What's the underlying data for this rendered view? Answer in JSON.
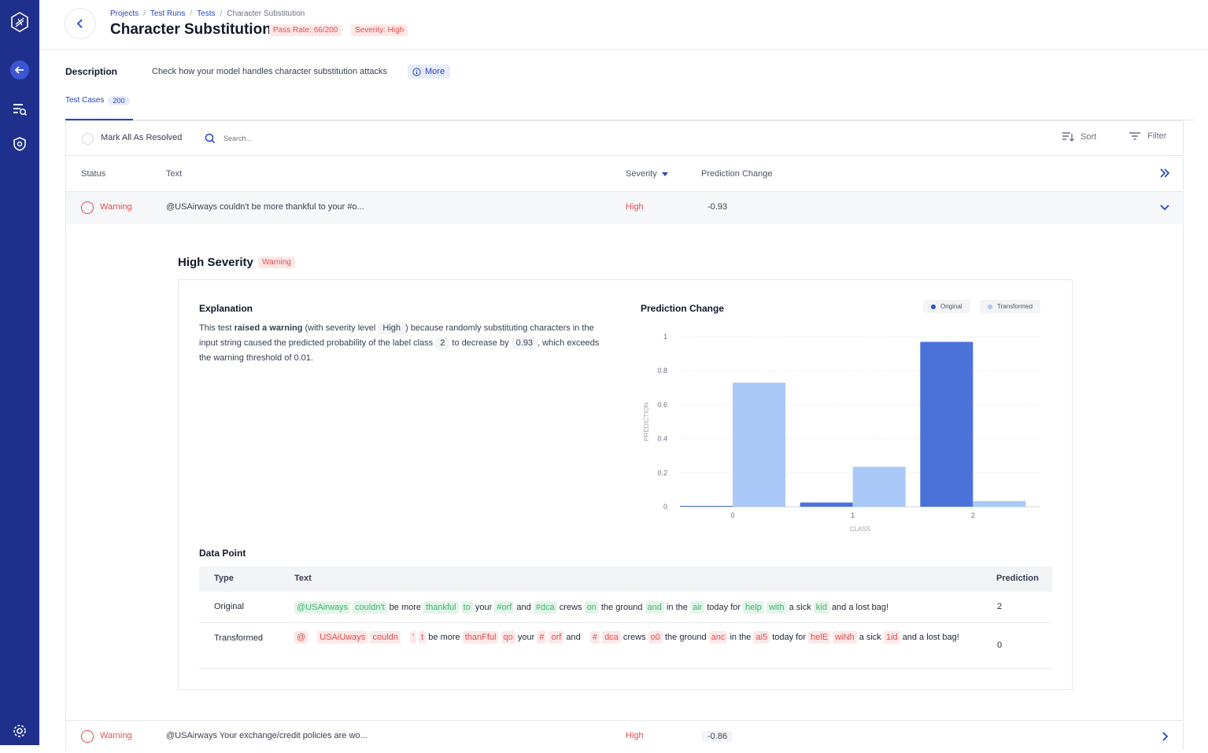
{
  "breadcrumb": [
    "Projects",
    "Test Runs",
    "Tests",
    "Character Substitution"
  ],
  "page": {
    "title": "Character Substitution",
    "pass_rate": "Pass Rate: 66/200",
    "severity": "Severity: High"
  },
  "description": {
    "label": "Description",
    "text": "Check how your model handles character substitution attacks",
    "more": "More"
  },
  "tabs": {
    "test_cases_label": "Test Cases",
    "test_cases_count": "200"
  },
  "toolbar": {
    "mark_all": "Mark All As Resolved",
    "search_placeholder": "Search...",
    "sort": "Sort",
    "filter": "Filter"
  },
  "table": {
    "headers": {
      "status": "Status",
      "text": "Text",
      "severity": "Severity",
      "prediction_change": "Prediction Change"
    },
    "rows": [
      {
        "status": "Warning",
        "text": "@USAirways couldn't be more thankful to your #o...",
        "severity": "High",
        "prediction_change": "-0.93"
      },
      {
        "status": "Warning",
        "text": "@USAirways Your exchange/credit policies are wo...",
        "severity": "High",
        "prediction_change": "-0.86"
      }
    ]
  },
  "detail": {
    "title": "High Severity",
    "badge": "Warning",
    "explanation_title": "Explanation",
    "explanation": {
      "p1": "This test ",
      "p2": "raised a warning",
      "p3": " (with severity level ",
      "level": "High",
      "p4": ") because randomly substituting characters in the input string caused the predicted probability of the label class ",
      "cls": "2",
      "p5": " to decrease by ",
      "delta": "0.93",
      "p6": ", which exceeds the warning threshold of 0.01."
    },
    "chart_title": "Prediction Change",
    "data_point_title": "Data Point",
    "dp_headers": {
      "type": "Type",
      "text": "Text",
      "prediction": "Prediction"
    },
    "original": {
      "type": "Original",
      "prediction": "2",
      "tokens": [
        {
          "t": "@USAirways",
          "h": "g"
        },
        {
          "t": "couldn't",
          "h": "g"
        },
        {
          "t": "be more",
          "h": ""
        },
        {
          "t": "thankful",
          "h": "g"
        },
        {
          "t": "to",
          "h": "g"
        },
        {
          "t": "your",
          "h": ""
        },
        {
          "t": "#orf",
          "h": "g"
        },
        {
          "t": "and",
          "h": ""
        },
        {
          "t": "#dca",
          "h": "g"
        },
        {
          "t": "crews",
          "h": ""
        },
        {
          "t": "on",
          "h": "g"
        },
        {
          "t": "the ground",
          "h": ""
        },
        {
          "t": "and",
          "h": "g"
        },
        {
          "t": "in the",
          "h": ""
        },
        {
          "t": "air",
          "h": "g"
        },
        {
          "t": "today for",
          "h": ""
        },
        {
          "t": "help",
          "h": "g"
        },
        {
          "t": "with",
          "h": "g"
        },
        {
          "t": "a sick",
          "h": ""
        },
        {
          "t": "kid",
          "h": "g"
        },
        {
          "t": "and a lost bag!",
          "h": ""
        }
      ]
    },
    "transformed": {
      "type": "Transformed",
      "prediction": "0",
      "tokens": [
        {
          "t": "@",
          "h": "r"
        },
        {
          "t": " ",
          "h": "r"
        },
        {
          "t": "USAiUways",
          "h": "r"
        },
        {
          "t": "couldn",
          "h": "r"
        },
        {
          "t": " ",
          "h": "r"
        },
        {
          "t": "'",
          "h": "r"
        },
        {
          "t": "t",
          "h": "r"
        },
        {
          "t": "be more",
          "h": ""
        },
        {
          "t": "thanFful",
          "h": "r"
        },
        {
          "t": "qo",
          "h": "r"
        },
        {
          "t": "your",
          "h": ""
        },
        {
          "t": "#",
          "h": "r"
        },
        {
          "t": "orf",
          "h": "r"
        },
        {
          "t": "and",
          "h": ""
        },
        {
          "t": " ",
          "h": "r"
        },
        {
          "t": "#",
          "h": "r"
        },
        {
          "t": "dca",
          "h": "r"
        },
        {
          "t": "crews",
          "h": ""
        },
        {
          "t": "o0",
          "h": "r"
        },
        {
          "t": "the ground",
          "h": ""
        },
        {
          "t": "anc",
          "h": "r"
        },
        {
          "t": "in the",
          "h": ""
        },
        {
          "t": "ai5",
          "h": "r"
        },
        {
          "t": "today for",
          "h": ""
        },
        {
          "t": "helE",
          "h": "r"
        },
        {
          "t": "wiNh",
          "h": "r"
        },
        {
          "t": "a sick",
          "h": ""
        },
        {
          "t": "1id",
          "h": "r"
        },
        {
          "t": "and a lost bag!",
          "h": ""
        }
      ]
    }
  },
  "chart_data": {
    "type": "bar",
    "title": "Prediction Change",
    "xlabel": "CLASS",
    "ylabel": "PREDICTION",
    "categories": [
      "0",
      "1",
      "2"
    ],
    "ylim": [
      0,
      1
    ],
    "yticks": [
      "0",
      "0.2",
      "0.4",
      "0.6",
      "0.8",
      "1"
    ],
    "series": [
      {
        "name": "Original",
        "color": "#4a72d9",
        "values": [
          0.005,
          0.025,
          0.97
        ]
      },
      {
        "name": "Transformed",
        "color": "#aac8f8",
        "values": [
          0.73,
          0.235,
          0.033
        ]
      }
    ]
  },
  "colors": {
    "sidebar": "#1f2f8c",
    "accent": "#2443c9",
    "warning": "#e24c4c"
  }
}
